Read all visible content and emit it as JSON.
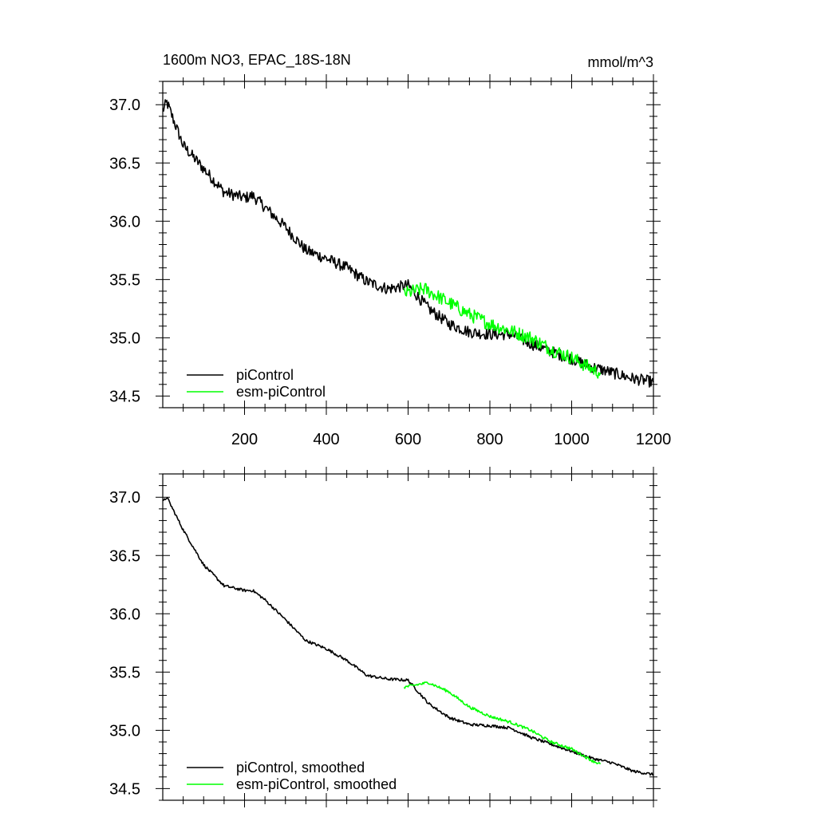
{
  "header": {
    "title": "1600m NO3, EPAC_18S-18N",
    "units": "mmol/m^3"
  },
  "colors": {
    "piControl": "#000000",
    "esm-piControl": "#00ff00",
    "frame": "#000000"
  },
  "chart_data": [
    {
      "type": "line",
      "panel": "top",
      "xlim": [
        0,
        1200
      ],
      "ylim": [
        34.4,
        37.2
      ],
      "xticks": [
        200,
        400,
        600,
        800,
        1000,
        1200
      ],
      "xtick_labels": [
        "200",
        "400",
        "600",
        "800",
        "1000",
        "1200"
      ],
      "yticks": [
        34.5,
        35.0,
        35.5,
        36.0,
        36.5,
        37.0
      ],
      "ytick_labels": [
        "34.5",
        "35.0",
        "35.5",
        "36.0",
        "36.5",
        "37.0"
      ],
      "legend_position": "bottom-left",
      "series": [
        {
          "name": "piControl",
          "color": "#000000",
          "noise": 0.05,
          "points": [
            [
              0,
              36.95
            ],
            [
              10,
              37.02
            ],
            [
              50,
              36.65
            ],
            [
              100,
              36.45
            ],
            [
              150,
              36.25
            ],
            [
              200,
              36.2
            ],
            [
              220,
              36.22
            ],
            [
              250,
              36.12
            ],
            [
              300,
              35.95
            ],
            [
              350,
              35.75
            ],
            [
              400,
              35.68
            ],
            [
              450,
              35.6
            ],
            [
              500,
              35.48
            ],
            [
              550,
              35.42
            ],
            [
              600,
              35.45
            ],
            [
              650,
              35.25
            ],
            [
              700,
              35.12
            ],
            [
              750,
              35.05
            ],
            [
              800,
              35.03
            ],
            [
              850,
              35.03
            ],
            [
              900,
              34.95
            ],
            [
              950,
              34.88
            ],
            [
              1000,
              34.82
            ],
            [
              1050,
              34.75
            ],
            [
              1100,
              34.7
            ],
            [
              1150,
              34.65
            ],
            [
              1200,
              34.62
            ]
          ]
        },
        {
          "name": "esm-piControl",
          "color": "#00ff00",
          "noise": 0.06,
          "points": [
            [
              590,
              35.38
            ],
            [
              640,
              35.42
            ],
            [
              700,
              35.3
            ],
            [
              750,
              35.2
            ],
            [
              800,
              35.12
            ],
            [
              850,
              35.06
            ],
            [
              900,
              35.0
            ],
            [
              950,
              34.9
            ],
            [
              1000,
              34.83
            ],
            [
              1050,
              34.73
            ],
            [
              1070,
              34.7
            ]
          ]
        }
      ]
    },
    {
      "type": "line",
      "panel": "bottom",
      "xlim": [
        0,
        1200
      ],
      "ylim": [
        34.4,
        37.2
      ],
      "yticks": [
        34.5,
        35.0,
        35.5,
        36.0,
        36.5,
        37.0
      ],
      "ytick_labels": [
        "34.5",
        "35.0",
        "35.5",
        "36.0",
        "36.5",
        "37.0"
      ],
      "legend_position": "bottom-left",
      "series": [
        {
          "name": "piControl, smoothed",
          "color": "#000000",
          "noise": 0.012,
          "points": [
            [
              0,
              36.96
            ],
            [
              10,
              37.0
            ],
            [
              50,
              36.72
            ],
            [
              100,
              36.42
            ],
            [
              150,
              36.24
            ],
            [
              200,
              36.2
            ],
            [
              220,
              36.2
            ],
            [
              250,
              36.12
            ],
            [
              300,
              35.95
            ],
            [
              350,
              35.77
            ],
            [
              400,
              35.7
            ],
            [
              450,
              35.6
            ],
            [
              500,
              35.47
            ],
            [
              550,
              35.44
            ],
            [
              600,
              35.43
            ],
            [
              650,
              35.23
            ],
            [
              700,
              35.11
            ],
            [
              750,
              35.05
            ],
            [
              800,
              35.04
            ],
            [
              850,
              35.02
            ],
            [
              900,
              34.94
            ],
            [
              950,
              34.88
            ],
            [
              1000,
              34.82
            ],
            [
              1050,
              34.76
            ],
            [
              1100,
              34.72
            ],
            [
              1150,
              34.65
            ],
            [
              1200,
              34.62
            ]
          ]
        },
        {
          "name": "esm-piControl, smoothed",
          "color": "#00ff00",
          "noise": 0.012,
          "points": [
            [
              590,
              35.37
            ],
            [
              650,
              35.41
            ],
            [
              700,
              35.33
            ],
            [
              750,
              35.2
            ],
            [
              800,
              35.12
            ],
            [
              850,
              35.07
            ],
            [
              900,
              35.0
            ],
            [
              950,
              34.9
            ],
            [
              1000,
              34.84
            ],
            [
              1050,
              34.74
            ],
            [
              1070,
              34.71
            ]
          ]
        }
      ]
    }
  ]
}
